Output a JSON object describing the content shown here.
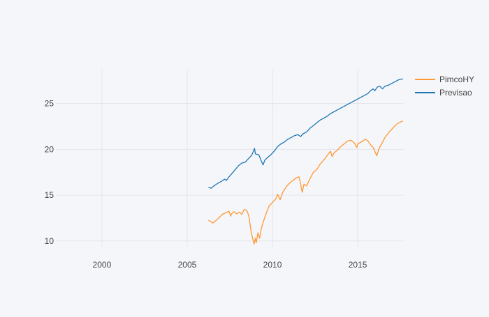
{
  "chart_data": {
    "type": "line",
    "title": "",
    "xlabel": "",
    "ylabel": "",
    "xlim": [
      1997.3,
      2017.7
    ],
    "ylim": [
      9.3,
      28.7
    ],
    "grid": true,
    "legend": "top-right",
    "x_ticks": [
      2000,
      2005,
      2010,
      2015
    ],
    "x_tick_labels": [
      "2000",
      "2005",
      "2010",
      "2015"
    ],
    "y_ticks": [
      10,
      15,
      20,
      25
    ],
    "y_tick_labels": [
      "10",
      "15",
      "20",
      "25"
    ],
    "series": [
      {
        "name": "PimcoHY",
        "color": "#ff9933",
        "points": [
          [
            2006.25,
            12.25
          ],
          [
            2006.4,
            12.1
          ],
          [
            2006.5,
            11.95
          ],
          [
            2006.7,
            12.25
          ],
          [
            2006.9,
            12.6
          ],
          [
            2007.1,
            12.95
          ],
          [
            2007.3,
            13.1
          ],
          [
            2007.45,
            13.25
          ],
          [
            2007.55,
            12.7
          ],
          [
            2007.6,
            12.95
          ],
          [
            2007.75,
            13.2
          ],
          [
            2007.9,
            12.95
          ],
          [
            2008.05,
            13.15
          ],
          [
            2008.2,
            12.9
          ],
          [
            2008.35,
            13.45
          ],
          [
            2008.5,
            13.3
          ],
          [
            2008.6,
            12.8
          ],
          [
            2008.65,
            12.3
          ],
          [
            2008.75,
            11.0
          ],
          [
            2008.85,
            10.2
          ],
          [
            2008.92,
            9.65
          ],
          [
            2009.0,
            10.3
          ],
          [
            2009.05,
            9.8
          ],
          [
            2009.15,
            10.9
          ],
          [
            2009.25,
            10.3
          ],
          [
            2009.35,
            11.4
          ],
          [
            2009.5,
            12.3
          ],
          [
            2009.65,
            13.1
          ],
          [
            2009.8,
            13.8
          ],
          [
            2010.0,
            14.2
          ],
          [
            2010.2,
            14.6
          ],
          [
            2010.3,
            15.1
          ],
          [
            2010.45,
            14.5
          ],
          [
            2010.6,
            15.3
          ],
          [
            2010.8,
            15.9
          ],
          [
            2011.0,
            16.3
          ],
          [
            2011.2,
            16.6
          ],
          [
            2011.4,
            16.9
          ],
          [
            2011.55,
            17.0
          ],
          [
            2011.65,
            16.3
          ],
          [
            2011.7,
            15.7
          ],
          [
            2011.75,
            15.3
          ],
          [
            2011.85,
            16.2
          ],
          [
            2012.0,
            16.0
          ],
          [
            2012.2,
            16.8
          ],
          [
            2012.4,
            17.5
          ],
          [
            2012.6,
            17.8
          ],
          [
            2012.8,
            18.4
          ],
          [
            2013.0,
            18.8
          ],
          [
            2013.2,
            19.3
          ],
          [
            2013.4,
            19.8
          ],
          [
            2013.5,
            19.2
          ],
          [
            2013.6,
            19.6
          ],
          [
            2013.8,
            19.9
          ],
          [
            2014.0,
            20.3
          ],
          [
            2014.2,
            20.6
          ],
          [
            2014.4,
            20.9
          ],
          [
            2014.6,
            21.0
          ],
          [
            2014.8,
            20.7
          ],
          [
            2014.95,
            20.2
          ],
          [
            2015.0,
            20.6
          ],
          [
            2015.2,
            20.8
          ],
          [
            2015.45,
            21.1
          ],
          [
            2015.6,
            20.9
          ],
          [
            2015.75,
            20.5
          ],
          [
            2015.9,
            20.2
          ],
          [
            2016.0,
            19.8
          ],
          [
            2016.12,
            19.3
          ],
          [
            2016.25,
            20.1
          ],
          [
            2016.4,
            20.6
          ],
          [
            2016.6,
            21.3
          ],
          [
            2016.8,
            21.8
          ],
          [
            2017.0,
            22.2
          ],
          [
            2017.2,
            22.6
          ],
          [
            2017.4,
            22.9
          ],
          [
            2017.65,
            23.1
          ]
        ]
      },
      {
        "name": "Previsao",
        "color": "#1f77b4",
        "points": [
          [
            2006.25,
            15.85
          ],
          [
            2006.4,
            15.75
          ],
          [
            2006.6,
            16.05
          ],
          [
            2006.8,
            16.3
          ],
          [
            2007.0,
            16.5
          ],
          [
            2007.2,
            16.75
          ],
          [
            2007.3,
            16.6
          ],
          [
            2007.45,
            17.0
          ],
          [
            2007.6,
            17.3
          ],
          [
            2007.8,
            17.75
          ],
          [
            2008.0,
            18.2
          ],
          [
            2008.2,
            18.5
          ],
          [
            2008.4,
            18.6
          ],
          [
            2008.55,
            18.9
          ],
          [
            2008.7,
            19.2
          ],
          [
            2008.8,
            19.4
          ],
          [
            2008.88,
            19.8
          ],
          [
            2008.95,
            20.1
          ],
          [
            2009.0,
            19.5
          ],
          [
            2009.2,
            19.4
          ],
          [
            2009.35,
            18.7
          ],
          [
            2009.45,
            18.3
          ],
          [
            2009.55,
            18.8
          ],
          [
            2009.7,
            19.1
          ],
          [
            2009.9,
            19.4
          ],
          [
            2010.1,
            19.8
          ],
          [
            2010.3,
            20.3
          ],
          [
            2010.5,
            20.6
          ],
          [
            2010.7,
            20.8
          ],
          [
            2010.9,
            21.1
          ],
          [
            2011.1,
            21.3
          ],
          [
            2011.3,
            21.5
          ],
          [
            2011.5,
            21.6
          ],
          [
            2011.65,
            21.4
          ],
          [
            2011.8,
            21.7
          ],
          [
            2012.0,
            21.9
          ],
          [
            2012.2,
            22.3
          ],
          [
            2012.4,
            22.6
          ],
          [
            2012.6,
            22.9
          ],
          [
            2012.8,
            23.2
          ],
          [
            2013.0,
            23.4
          ],
          [
            2013.2,
            23.6
          ],
          [
            2013.4,
            23.9
          ],
          [
            2013.6,
            24.1
          ],
          [
            2013.8,
            24.3
          ],
          [
            2014.0,
            24.5
          ],
          [
            2014.2,
            24.7
          ],
          [
            2014.4,
            24.9
          ],
          [
            2014.6,
            25.1
          ],
          [
            2014.8,
            25.3
          ],
          [
            2015.0,
            25.5
          ],
          [
            2015.2,
            25.7
          ],
          [
            2015.4,
            25.9
          ],
          [
            2015.6,
            26.1
          ],
          [
            2015.75,
            26.4
          ],
          [
            2015.9,
            26.6
          ],
          [
            2016.0,
            26.4
          ],
          [
            2016.15,
            26.8
          ],
          [
            2016.3,
            26.9
          ],
          [
            2016.45,
            26.6
          ],
          [
            2016.6,
            26.9
          ],
          [
            2016.8,
            27.0
          ],
          [
            2017.0,
            27.2
          ],
          [
            2017.2,
            27.4
          ],
          [
            2017.4,
            27.6
          ],
          [
            2017.65,
            27.7
          ]
        ]
      }
    ]
  }
}
